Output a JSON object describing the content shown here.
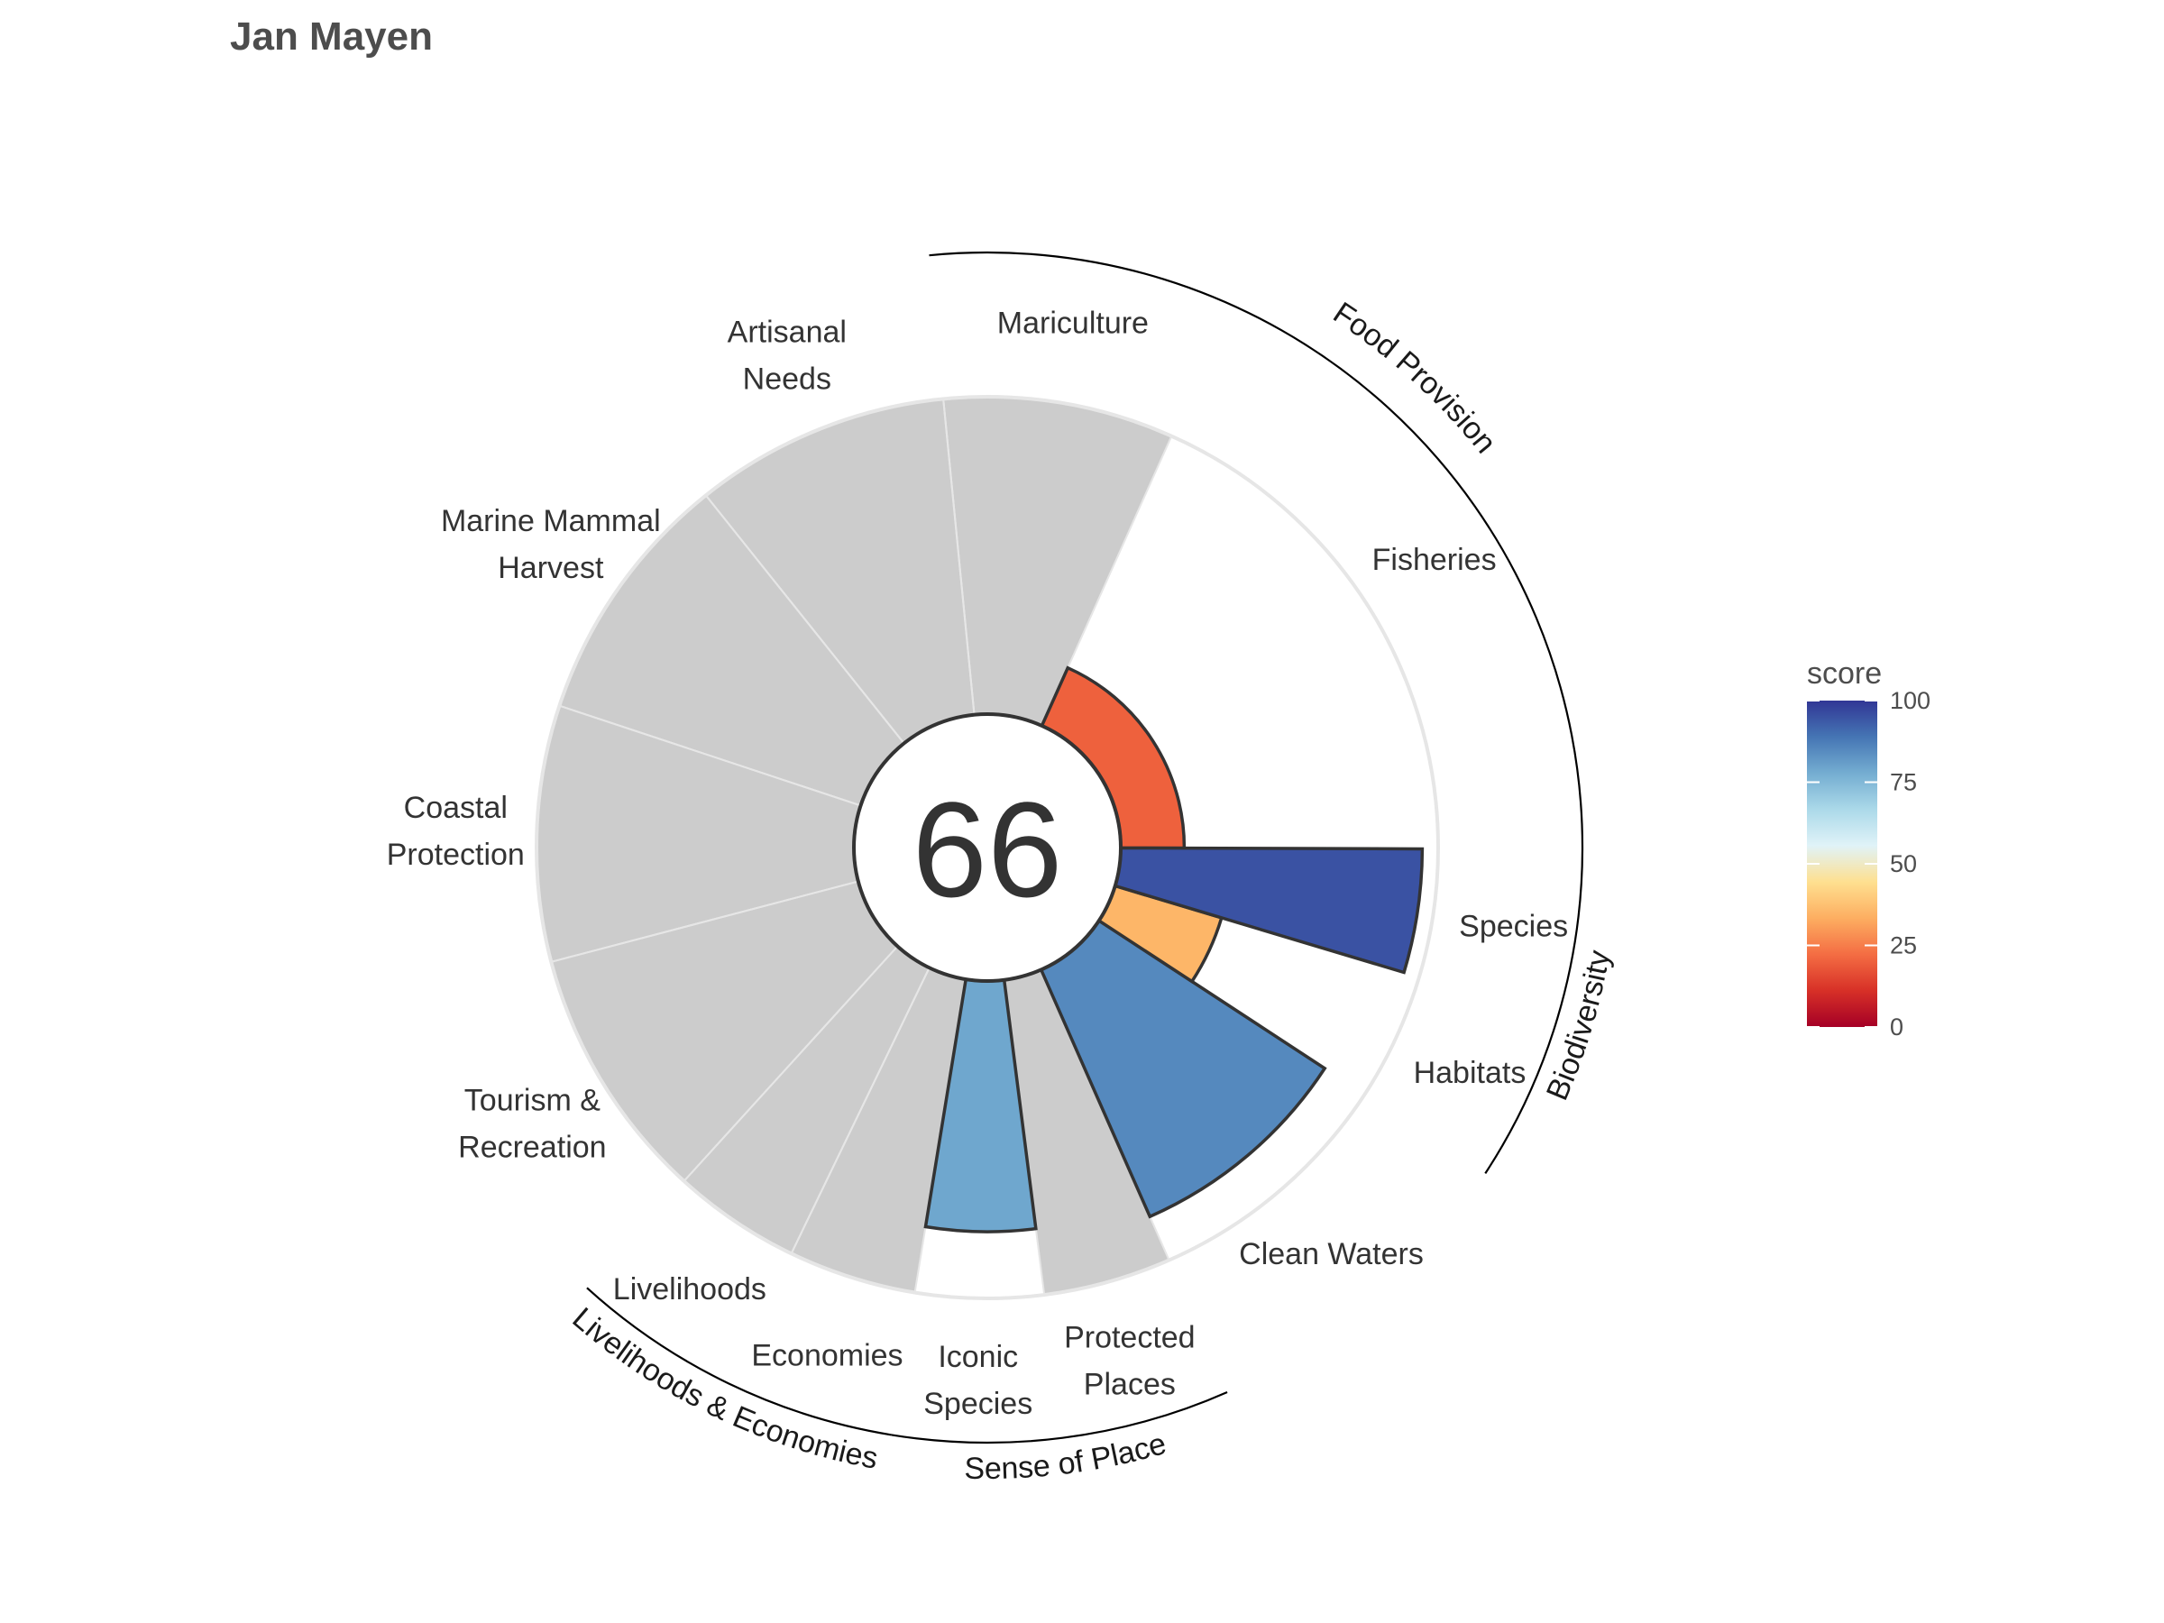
{
  "chart_data": {
    "type": "flower",
    "title": "Jan Mayen",
    "center_score": "66",
    "scale_max": 100,
    "petals": [
      {
        "label": [
          "Fisheries"
        ],
        "score": 20,
        "weight": 2,
        "na": false
      },
      {
        "label": [
          "Mariculture"
        ],
        "score": null,
        "weight": 0.9,
        "na": true
      },
      {
        "label": [
          "Artisanal",
          "Needs"
        ],
        "score": null,
        "weight": 1,
        "na": true
      },
      {
        "label": [
          "Marine Mammal",
          "Harvest"
        ],
        "score": null,
        "weight": 1,
        "na": true
      },
      {
        "label": [
          "Coastal",
          "Protection"
        ],
        "score": null,
        "weight": 1,
        "na": true
      },
      {
        "label": [
          "Tourism &",
          "Recreation"
        ],
        "score": null,
        "weight": 1,
        "na": true
      },
      {
        "label": [
          "Livelihoods"
        ],
        "score": null,
        "weight": 0.5,
        "na": true
      },
      {
        "label": [
          "Economies"
        ],
        "score": null,
        "weight": 0.5,
        "na": true
      },
      {
        "label": [
          "Iconic",
          "Species"
        ],
        "score": 79,
        "weight": 0.5,
        "na": false
      },
      {
        "label": [
          "Protected",
          "Places"
        ],
        "score": null,
        "weight": 0.5,
        "na": true
      },
      {
        "label": [
          "Clean Waters"
        ],
        "score": 85,
        "weight": 1,
        "na": false
      },
      {
        "label": [
          "Habitats"
        ],
        "score": 35,
        "weight": 0.5,
        "na": false
      },
      {
        "label": [
          "Species"
        ],
        "score": 95,
        "weight": 0.5,
        "na": false
      }
    ],
    "groups": [
      {
        "label": "Food Provision",
        "from": 0,
        "to": 1
      },
      {
        "label": "Biodiversity",
        "from": 11,
        "to": 12
      },
      {
        "label": "Sense of Place",
        "from": 8,
        "to": 9
      },
      {
        "label": "Livelihoods & Economies",
        "from": 6,
        "to": 7
      }
    ],
    "legend": {
      "title": "score",
      "ticks": [
        0,
        25,
        50,
        75,
        100
      ],
      "colors": [
        "#a50026",
        "#d73027",
        "#f46d43",
        "#fdae61",
        "#fee090",
        "#e0f3f8",
        "#abd9e9",
        "#74add1",
        "#4575b4",
        "#313695"
      ]
    }
  }
}
